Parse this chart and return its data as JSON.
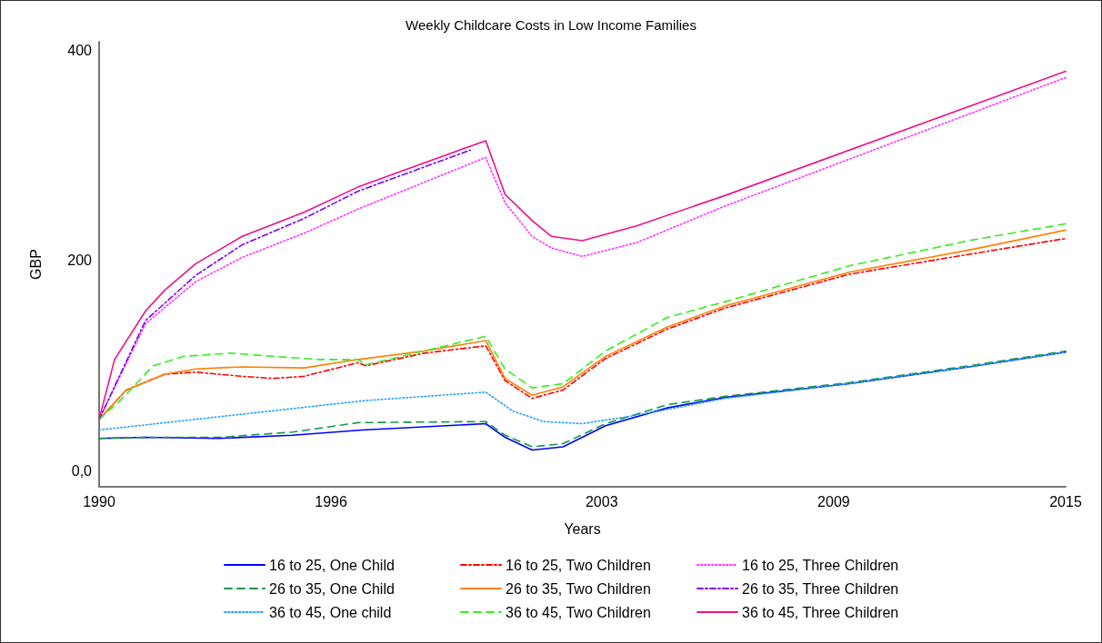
{
  "chart_data": {
    "type": "line",
    "title": "Weekly Childcare Costs in Low Income Families",
    "xlabel": "Years",
    "ylabel": "GBP",
    "xlim": [
      1990,
      2015
    ],
    "xticks": [
      1990,
      1996,
      2003,
      2009,
      2015
    ],
    "ylim": [
      -15,
      408
    ],
    "yticks": [
      {
        "value": 0,
        "label": "0,0"
      },
      200,
      400
    ],
    "grid": false,
    "legend": "bottom",
    "marker": "none",
    "series": [
      {
        "name": "16 to 25, One Child",
        "color": "#0000ff",
        "line_style": "solid",
        "x": [
          1990,
          1991.2,
          1993.1,
          1995,
          1996.8,
          1998.4,
          2000,
          2000.5,
          2001.2,
          2002,
          2003.1,
          2004.7,
          2006.2,
          2009.4,
          2012.5,
          2015
        ],
        "values": [
          31,
          32,
          31,
          34,
          39,
          42,
          45,
          32,
          20,
          23,
          43,
          60,
          70,
          83,
          99,
          113
        ]
      },
      {
        "name": "16 to 25, Two Children",
        "color": "#ff0000",
        "line_style": "dashdot",
        "x": [
          1990,
          1990.7,
          1991.7,
          1992.5,
          1993.7,
          1994.5,
          1995.3,
          1996.7,
          1996.9,
          1998.4,
          2000,
          2000.5,
          2001.2,
          2002,
          2003.1,
          2004.7,
          2006.2,
          2009.4,
          2012.5,
          2015
        ],
        "values": [
          49,
          77,
          92,
          94,
          90,
          88,
          90,
          103,
          100,
          112,
          119,
          86,
          69,
          77,
          107,
          135,
          155,
          187,
          206,
          221
        ]
      },
      {
        "name": "16 to 25, Three Children",
        "color": "#ff33ff",
        "line_style": "dotted",
        "x": [
          1990,
          1991.2,
          1992.5,
          1993.7,
          1995.3,
          1996.7,
          2000,
          2000.5,
          2001.2,
          2001.7,
          2002.5,
          2003.9,
          2006.2,
          2015
        ],
        "values": [
          49,
          140,
          180,
          203,
          226,
          249,
          298,
          255,
          223,
          212,
          204,
          217,
          252,
          374
        ]
      },
      {
        "name": "26 to 35, One Child",
        "color": "#119944",
        "line_style": "dashed",
        "x": [
          1990,
          1991.2,
          1993.1,
          1995,
          1996.7,
          2000,
          2000.5,
          2001.2,
          2002,
          2003.1,
          2004.7,
          2006.2,
          2009.4,
          2012.5,
          2015
        ],
        "values": [
          31,
          32,
          32,
          37,
          46,
          47,
          34,
          23,
          26,
          45,
          63,
          71,
          84,
          100,
          114
        ]
      },
      {
        "name": "26 to 35, Two Children",
        "color": "#ff8000",
        "line_style": "solid",
        "x": [
          1990,
          1990.7,
          1991.7,
          1992.5,
          1993.7,
          1995.3,
          1996.7,
          1998.4,
          2000,
          2000.5,
          2001.2,
          2002,
          2003.1,
          2004.7,
          2006.2,
          2009.4,
          2012.5,
          2015
        ],
        "values": [
          49,
          77,
          92,
          97,
          99,
          98,
          106,
          114,
          124,
          88,
          72,
          80,
          109,
          137,
          157,
          189,
          210,
          229
        ]
      },
      {
        "name": "26 to 35, Three Children",
        "color": "#8000ff",
        "line_style": "dashdot",
        "x": [
          1990,
          1991.2,
          1992.5,
          1993.7,
          1995.3,
          1996.7,
          1999.6
        ],
        "values": [
          49,
          143,
          186,
          215,
          240,
          266,
          305
        ]
      },
      {
        "name": "36 to 45, One child",
        "color": "#22a0ff",
        "line_style": "dotted",
        "x": [
          1990,
          1996.9,
          2000,
          2000.7,
          2001.5,
          2002.5,
          2003.9,
          2006.2,
          2009.4,
          2012.5,
          2015
        ],
        "values": [
          39,
          67,
          75,
          57,
          47,
          45,
          53,
          69,
          83,
          99,
          113
        ]
      },
      {
        "name": "36 to 45, Two Children",
        "color": "#33ee22",
        "line_style": "dashed",
        "x": [
          1990,
          1990.6,
          1991.4,
          1992.2,
          1993.4,
          1994.5,
          1995.7,
          1996.7,
          1996.9,
          2000,
          2000.5,
          2001.2,
          2002,
          2003.1,
          2004.7,
          2006.2,
          2009.4,
          2012.5,
          2015
        ],
        "values": [
          49,
          69,
          100,
          109,
          112,
          109,
          106,
          106,
          101,
          128,
          97,
          79,
          83,
          114,
          146,
          161,
          195,
          219,
          235
        ]
      },
      {
        "name": "36 to 45, Three Children",
        "color": "#ee1188",
        "line_style": "solid",
        "x": [
          1990,
          1990.4,
          1991.2,
          1991.7,
          1992.5,
          1993.7,
          1995.3,
          1996.7,
          2000,
          2000.5,
          2001.2,
          2001.7,
          2002.5,
          2003.9,
          2006.2,
          2015
        ],
        "values": [
          49,
          106,
          152,
          172,
          197,
          223,
          246,
          270,
          314,
          263,
          238,
          223,
          219,
          233,
          262,
          380
        ]
      }
    ]
  }
}
